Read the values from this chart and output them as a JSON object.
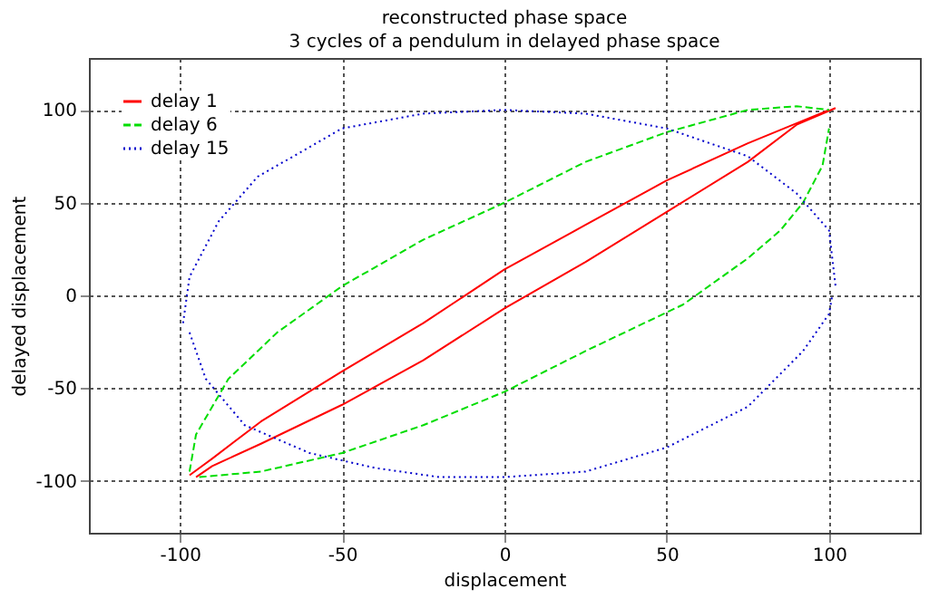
{
  "chart_data": {
    "type": "line",
    "title": "reconstructed phase space",
    "subtitle": "3 cycles of a pendulum in delayed phase space",
    "xlabel": "displacement",
    "ylabel": "delayed displacement",
    "xlim": [
      -128,
      128
    ],
    "ylim": [
      -128,
      128
    ],
    "xticks": [
      -100,
      -50,
      0,
      50,
      100
    ],
    "yticks": [
      -100,
      -50,
      0,
      50,
      100
    ],
    "grid": true,
    "legend": "top left",
    "marker": "none",
    "series": [
      {
        "name": "delay 1",
        "color": "#ff0000",
        "line_style": "solid",
        "x": [
          -97,
          -90,
          -75,
          -50,
          -25,
          0,
          25,
          50,
          75,
          100
        ],
        "values": [
          -97,
          -88,
          -68,
          -41,
          -15,
          14,
          38,
          62,
          82,
          100
        ]
      },
      {
        "color": "#ff0000",
        "line_style": "solid",
        "x": [
          -95,
          -90,
          -75,
          -50,
          -25,
          0,
          25,
          50,
          75,
          90,
          102
        ],
        "values": [
          -98,
          -92,
          -80,
          -59,
          -35,
          -7,
          18,
          45,
          72,
          92,
          101
        ]
      },
      {
        "name": "delay 6",
        "color": "#00dd00",
        "line_style": "dashed",
        "x": [
          -97,
          -95,
          -85,
          -70,
          -50,
          -25,
          0,
          25,
          50,
          75,
          90,
          100
        ],
        "values": [
          -95,
          -75,
          -45,
          -20,
          5,
          30,
          50,
          72,
          88,
          100,
          102,
          100
        ]
      },
      {
        "color": "#00dd00",
        "line_style": "dashed",
        "x": [
          -94,
          -75,
          -50,
          -25,
          0,
          25,
          55,
          75,
          85,
          92,
          98,
          100
        ],
        "values": [
          -98,
          -95,
          -85,
          -70,
          -52,
          -30,
          -5,
          20,
          35,
          50,
          70,
          90
        ]
      },
      {
        "name": "delay 15",
        "color": "#0000cc",
        "line_style": "dotted",
        "x": [
          -99,
          -97,
          -88,
          -76,
          -50,
          -25,
          0,
          25,
          50,
          75,
          90,
          100,
          102
        ],
        "values": [
          -15,
          10,
          40,
          64,
          90,
          98,
          100,
          98,
          90,
          75,
          55,
          35,
          5
        ]
      },
      {
        "color": "#0000cc",
        "line_style": "dotted",
        "x": [
          -97,
          -92,
          -80,
          -60,
          -40,
          -20,
          0,
          25,
          50,
          75,
          92,
          100,
          101
        ],
        "values": [
          -20,
          -45,
          -70,
          -85,
          -93,
          -98,
          -98,
          -95,
          -82,
          -60,
          -30,
          -10,
          0
        ]
      }
    ]
  }
}
